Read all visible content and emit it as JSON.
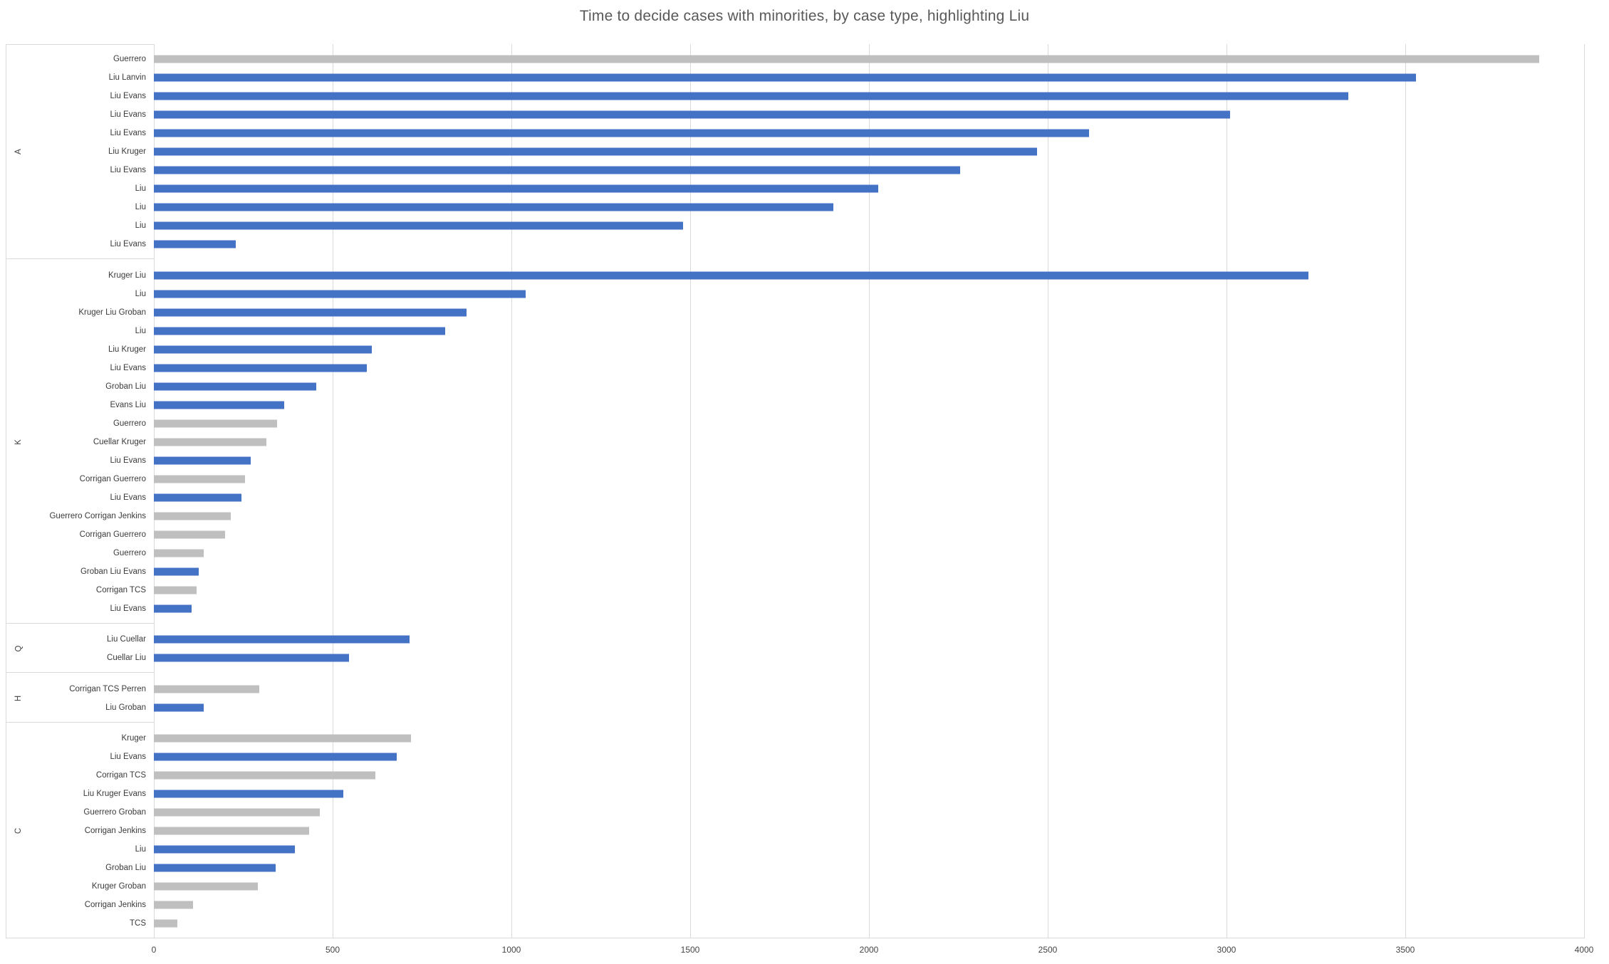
{
  "chart_data": {
    "type": "bar",
    "orientation": "horizontal",
    "title": "Time to decide cases with minorities, by case type, highlighting Liu",
    "xlabel": "",
    "ylabel": "",
    "xlim": [
      0,
      4000
    ],
    "x_ticks": [
      0,
      500,
      1000,
      1500,
      2000,
      2500,
      3000,
      3500,
      4000
    ],
    "grid": true,
    "legend": false,
    "highlighted_name": "Liu",
    "groups": [
      {
        "label": "A",
        "rows": [
          {
            "name": "Guerrero",
            "value": 3875,
            "highlight": false
          },
          {
            "name": "Liu Lanvin",
            "value": 3530,
            "highlight": true
          },
          {
            "name": "Liu Evans",
            "value": 3340,
            "highlight": true
          },
          {
            "name": "Liu Evans",
            "value": 3010,
            "highlight": true
          },
          {
            "name": "Liu Evans",
            "value": 2615,
            "highlight": true
          },
          {
            "name": "Liu Kruger",
            "value": 2470,
            "highlight": true
          },
          {
            "name": "Liu Evans",
            "value": 2255,
            "highlight": true
          },
          {
            "name": "Liu",
            "value": 2025,
            "highlight": true
          },
          {
            "name": "Liu",
            "value": 1900,
            "highlight": true
          },
          {
            "name": "Liu",
            "value": 1480,
            "highlight": true
          },
          {
            "name": "Liu Evans",
            "value": 230,
            "highlight": true
          }
        ]
      },
      {
        "label": "K",
        "rows": [
          {
            "name": "Kruger Liu",
            "value": 3230,
            "highlight": true
          },
          {
            "name": "Liu",
            "value": 1040,
            "highlight": true
          },
          {
            "name": "Kruger Liu Groban",
            "value": 875,
            "highlight": true
          },
          {
            "name": "Liu",
            "value": 815,
            "highlight": true
          },
          {
            "name": "Liu Kruger",
            "value": 610,
            "highlight": true
          },
          {
            "name": "Liu Evans",
            "value": 595,
            "highlight": true
          },
          {
            "name": "Groban Liu",
            "value": 455,
            "highlight": true
          },
          {
            "name": "Evans Liu",
            "value": 365,
            "highlight": true
          },
          {
            "name": "Guerrero",
            "value": 345,
            "highlight": false
          },
          {
            "name": "Cuellar Kruger",
            "value": 315,
            "highlight": false
          },
          {
            "name": "Liu Evans",
            "value": 270,
            "highlight": true
          },
          {
            "name": "Corrigan Guerrero",
            "value": 255,
            "highlight": false
          },
          {
            "name": "Liu Evans",
            "value": 245,
            "highlight": true
          },
          {
            "name": "Guerrero Corrigan Jenkins",
            "value": 215,
            "highlight": false
          },
          {
            "name": "Corrigan Guerrero",
            "value": 200,
            "highlight": false
          },
          {
            "name": "Guerrero",
            "value": 140,
            "highlight": false
          },
          {
            "name": "Groban Liu Evans",
            "value": 125,
            "highlight": true
          },
          {
            "name": "Corrigan TCS",
            "value": 120,
            "highlight": false
          },
          {
            "name": "Liu Evans",
            "value": 105,
            "highlight": true
          }
        ]
      },
      {
        "label": "Q",
        "rows": [
          {
            "name": "Liu Cuellar",
            "value": 715,
            "highlight": true
          },
          {
            "name": "Cuellar Liu",
            "value": 545,
            "highlight": true
          }
        ]
      },
      {
        "label": "H",
        "rows": [
          {
            "name": "Corrigan TCS Perren",
            "value": 295,
            "highlight": false
          },
          {
            "name": "Liu Groban",
            "value": 140,
            "highlight": true
          }
        ]
      },
      {
        "label": "C",
        "rows": [
          {
            "name": "Kruger",
            "value": 720,
            "highlight": false
          },
          {
            "name": "Liu Evans",
            "value": 680,
            "highlight": true
          },
          {
            "name": "Corrigan TCS",
            "value": 620,
            "highlight": false
          },
          {
            "name": "Liu Kruger Evans",
            "value": 530,
            "highlight": true
          },
          {
            "name": "Guerrero Groban",
            "value": 465,
            "highlight": false
          },
          {
            "name": "Corrigan Jenkins",
            "value": 435,
            "highlight": false
          },
          {
            "name": "Liu",
            "value": 395,
            "highlight": true
          },
          {
            "name": "Groban Liu",
            "value": 340,
            "highlight": true
          },
          {
            "name": "Kruger Groban",
            "value": 290,
            "highlight": false
          },
          {
            "name": "Corrigan Jenkins",
            "value": 110,
            "highlight": false
          },
          {
            "name": "TCS",
            "value": 65,
            "highlight": false
          }
        ]
      }
    ],
    "colors": {
      "highlight_bar": "#4472C4",
      "other_bar": "#BFBFBF",
      "gridline": "#D9D9D9",
      "title_text": "#595959",
      "label_text": "#3A3A3A"
    }
  }
}
